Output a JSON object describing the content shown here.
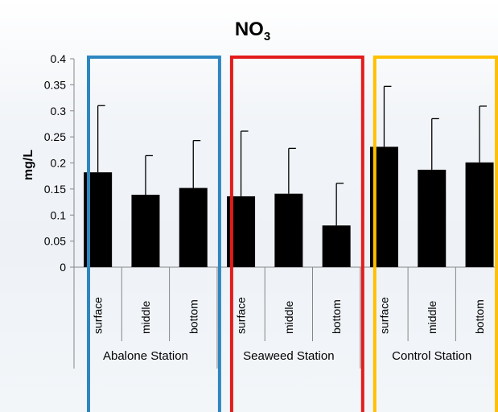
{
  "chart_data": {
    "type": "bar",
    "title": "NO",
    "title_subscript": "3",
    "ylabel": "mg/L",
    "ylim": [
      0,
      0.4
    ],
    "yticks": [
      "0",
      "0.05",
      "0.1",
      "0.15",
      "0.2",
      "0.25",
      "0.3",
      "0.35",
      "0.4"
    ],
    "categories": [
      "surface",
      "middle",
      "bottom",
      "surface",
      "middle",
      "bottom",
      "surface",
      "middle",
      "bottom"
    ],
    "groups": [
      {
        "label": "Abalone Station",
        "color": "#2e86c1"
      },
      {
        "label": "Seaweed Station",
        "color": "#e31b1b"
      },
      {
        "label": "Control Station",
        "color": "#ffc000"
      }
    ],
    "values": [
      0.182,
      0.139,
      0.152,
      0.136,
      0.141,
      0.08,
      0.231,
      0.187,
      0.201
    ],
    "error_upper": [
      0.31,
      0.214,
      0.243,
      0.261,
      0.228,
      0.161,
      0.347,
      0.285,
      0.309
    ],
    "bar_color": "#000000",
    "grid": false,
    "legend": "none"
  }
}
